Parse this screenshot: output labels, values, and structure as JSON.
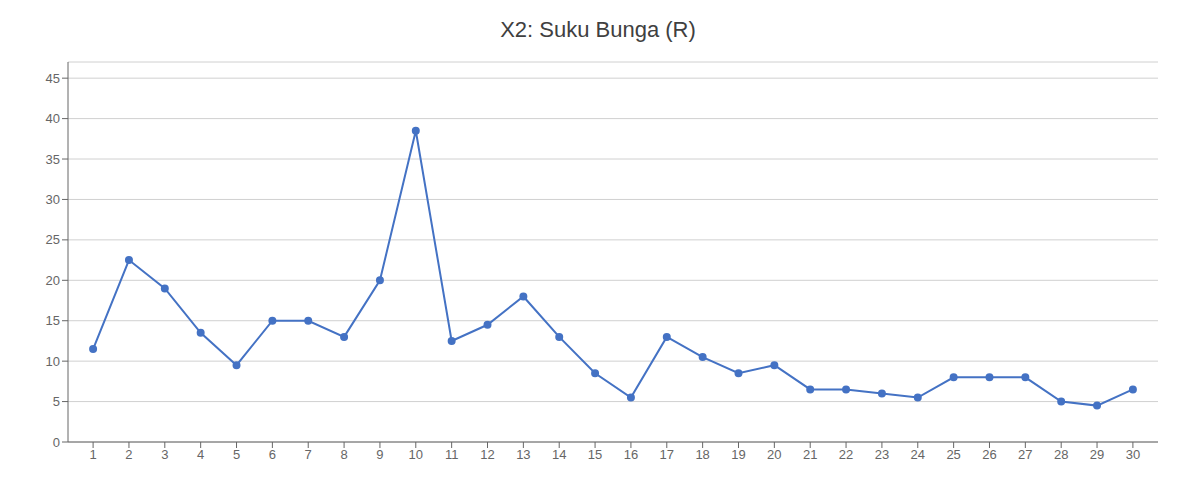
{
  "chart_data": {
    "type": "line",
    "title": "X2: Suku Bunga (R)",
    "x": [
      1,
      2,
      3,
      4,
      5,
      6,
      7,
      8,
      9,
      10,
      11,
      12,
      13,
      14,
      15,
      16,
      17,
      18,
      19,
      20,
      21,
      22,
      23,
      24,
      25,
      26,
      27,
      28,
      29,
      30
    ],
    "values": [
      11.5,
      22.5,
      19,
      13.5,
      9.5,
      15,
      15,
      13,
      20,
      38.5,
      12.5,
      14.5,
      18,
      13,
      8.5,
      5.5,
      13,
      10.5,
      8.5,
      9.5,
      6.5,
      6.5,
      6,
      5.5,
      8,
      8,
      8,
      5,
      4.5,
      6.5
    ],
    "color": "#4472C4",
    "marker": "circle",
    "xlim": [
      0.3,
      30.7
    ],
    "xticks": [
      1,
      2,
      3,
      4,
      5,
      6,
      7,
      8,
      9,
      10,
      11,
      12,
      13,
      14,
      15,
      16,
      17,
      18,
      19,
      20,
      21,
      22,
      23,
      24,
      25,
      26,
      27,
      28,
      29,
      30
    ],
    "ylim": [
      0,
      47
    ],
    "yticks": [
      0,
      5,
      10,
      15,
      20,
      25,
      30,
      35,
      40,
      45
    ],
    "grid": "y"
  }
}
